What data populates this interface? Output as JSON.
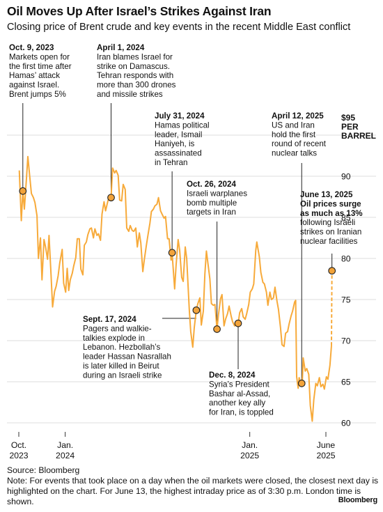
{
  "header": {
    "title": "Oil Moves Up After Israel’s Strikes Against Iran",
    "subtitle": "Closing price of Brent crude and key events in the recent Middle East conflict"
  },
  "footer": {
    "source": "Source: Bloomberg",
    "note": "Note: For events that took place on a day when the oil markets were closed, the closest next day is highlighted on the chart. For June 13, the highest intraday price as of 3:30 p.m. London time is shown.",
    "brand": "Bloomberg"
  },
  "colors": {
    "line": "#f7aa3a",
    "marker": "#f2a33a",
    "text": "#111111",
    "grid": "#dcdcdc"
  },
  "chart_data": {
    "type": "line",
    "title": "Oil Moves Up After Israel’s Strikes Against Iran",
    "subtitle": "Closing price of Brent crude and key events in the recent Middle East conflict",
    "y_unit_top": "$95",
    "y_unit_lines": [
      "PER",
      "BARREL"
    ],
    "ylim": [
      58,
      97
    ],
    "yticks": [
      60,
      65,
      70,
      75,
      80,
      85,
      90
    ],
    "xlim": [
      "2023-09-25",
      "2025-06-20"
    ],
    "xticks": [
      {
        "date": "2023-10-01",
        "lines": [
          "Oct.",
          "2023"
        ]
      },
      {
        "date": "2024-01-01",
        "lines": [
          "Jan.",
          "2024"
        ]
      },
      {
        "date": "2025-01-01",
        "lines": [
          "Jan.",
          "2025"
        ]
      },
      {
        "date": "2025-06-01",
        "lines": [
          "June",
          "2025"
        ]
      }
    ],
    "grid": true,
    "series": [
      {
        "points": [
          [
            "2023-10-02",
            90.7
          ],
          [
            "2023-10-06",
            84.6
          ],
          [
            "2023-10-09",
            88.2
          ],
          [
            "2023-10-12",
            86.0
          ],
          [
            "2023-10-16",
            89.6
          ],
          [
            "2023-10-19",
            92.4
          ],
          [
            "2023-10-23",
            89.8
          ],
          [
            "2023-10-26",
            87.9
          ],
          [
            "2023-10-30",
            87.4
          ],
          [
            "2023-11-02",
            86.8
          ],
          [
            "2023-11-06",
            85.2
          ],
          [
            "2023-11-09",
            80.0
          ],
          [
            "2023-11-13",
            82.5
          ],
          [
            "2023-11-16",
            77.4
          ],
          [
            "2023-11-20",
            82.3
          ],
          [
            "2023-11-23",
            81.4
          ],
          [
            "2023-11-27",
            79.9
          ],
          [
            "2023-11-30",
            82.8
          ],
          [
            "2023-12-04",
            78.0
          ],
          [
            "2023-12-07",
            74.1
          ],
          [
            "2023-12-11",
            76.0
          ],
          [
            "2023-12-14",
            76.6
          ],
          [
            "2023-12-18",
            77.9
          ],
          [
            "2023-12-21",
            79.4
          ],
          [
            "2023-12-26",
            81.1
          ],
          [
            "2023-12-29",
            77.0
          ],
          [
            "2024-01-02",
            75.9
          ],
          [
            "2024-01-05",
            78.8
          ],
          [
            "2024-01-08",
            76.1
          ],
          [
            "2024-01-11",
            77.4
          ],
          [
            "2024-01-15",
            78.2
          ],
          [
            "2024-01-18",
            79.1
          ],
          [
            "2024-01-22",
            80.1
          ],
          [
            "2024-01-25",
            82.4
          ],
          [
            "2024-01-29",
            82.4
          ],
          [
            "2024-02-01",
            78.7
          ],
          [
            "2024-02-05",
            78.0
          ],
          [
            "2024-02-08",
            81.6
          ],
          [
            "2024-02-12",
            82.0
          ],
          [
            "2024-02-15",
            82.9
          ],
          [
            "2024-02-19",
            83.6
          ],
          [
            "2024-02-22",
            83.7
          ],
          [
            "2024-02-26",
            82.5
          ],
          [
            "2024-02-29",
            83.6
          ],
          [
            "2024-03-04",
            82.8
          ],
          [
            "2024-03-07",
            83.0
          ],
          [
            "2024-03-11",
            82.2
          ],
          [
            "2024-03-14",
            85.4
          ],
          [
            "2024-03-18",
            86.9
          ],
          [
            "2024-03-21",
            85.8
          ],
          [
            "2024-03-25",
            86.8
          ],
          [
            "2024-03-28",
            87.5
          ],
          [
            "2024-04-01",
            87.4
          ],
          [
            "2024-04-04",
            91.0
          ],
          [
            "2024-04-08",
            90.4
          ],
          [
            "2024-04-11",
            90.7
          ],
          [
            "2024-04-15",
            90.1
          ],
          [
            "2024-04-18",
            87.1
          ],
          [
            "2024-04-22",
            87.0
          ],
          [
            "2024-04-25",
            89.0
          ],
          [
            "2024-04-29",
            88.4
          ],
          [
            "2024-05-02",
            83.7
          ],
          [
            "2024-05-06",
            83.3
          ],
          [
            "2024-05-09",
            84.0
          ],
          [
            "2024-05-13",
            83.4
          ],
          [
            "2024-05-16",
            83.3
          ],
          [
            "2024-05-20",
            83.7
          ],
          [
            "2024-05-23",
            81.4
          ],
          [
            "2024-05-27",
            83.1
          ],
          [
            "2024-05-30",
            81.9
          ],
          [
            "2024-06-03",
            78.4
          ],
          [
            "2024-06-06",
            79.9
          ],
          [
            "2024-06-10",
            81.6
          ],
          [
            "2024-06-13",
            82.8
          ],
          [
            "2024-06-17",
            84.3
          ],
          [
            "2024-06-20",
            85.7
          ],
          [
            "2024-06-24",
            86.0
          ],
          [
            "2024-06-27",
            86.4
          ],
          [
            "2024-07-01",
            86.6
          ],
          [
            "2024-07-04",
            87.4
          ],
          [
            "2024-07-08",
            85.8
          ],
          [
            "2024-07-11",
            85.4
          ],
          [
            "2024-07-15",
            84.9
          ],
          [
            "2024-07-18",
            85.1
          ],
          [
            "2024-07-22",
            82.4
          ],
          [
            "2024-07-25",
            82.4
          ],
          [
            "2024-07-29",
            79.8
          ],
          [
            "2024-07-31",
            80.7
          ],
          [
            "2024-08-05",
            76.3
          ],
          [
            "2024-08-08",
            79.2
          ],
          [
            "2024-08-12",
            82.3
          ],
          [
            "2024-08-15",
            81.0
          ],
          [
            "2024-08-19",
            77.7
          ],
          [
            "2024-08-22",
            77.2
          ],
          [
            "2024-08-26",
            81.4
          ],
          [
            "2024-08-29",
            80.0
          ],
          [
            "2024-09-03",
            73.8
          ],
          [
            "2024-09-06",
            71.1
          ],
          [
            "2024-09-10",
            69.2
          ],
          [
            "2024-09-13",
            71.6
          ],
          [
            "2024-09-17",
            73.7
          ],
          [
            "2024-09-20",
            74.5
          ],
          [
            "2024-09-24",
            75.2
          ],
          [
            "2024-09-27",
            71.9
          ],
          [
            "2024-10-01",
            73.6
          ],
          [
            "2024-10-04",
            78.1
          ],
          [
            "2024-10-07",
            80.9
          ],
          [
            "2024-10-10",
            79.4
          ],
          [
            "2024-10-14",
            77.5
          ],
          [
            "2024-10-17",
            74.5
          ],
          [
            "2024-10-21",
            74.3
          ],
          [
            "2024-10-24",
            74.4
          ],
          [
            "2024-10-28",
            71.4
          ],
          [
            "2024-10-31",
            73.2
          ],
          [
            "2024-11-04",
            75.1
          ],
          [
            "2024-11-07",
            75.6
          ],
          [
            "2024-11-11",
            71.8
          ],
          [
            "2024-11-14",
            72.6
          ],
          [
            "2024-11-18",
            73.3
          ],
          [
            "2024-11-21",
            74.2
          ],
          [
            "2024-11-25",
            73.0
          ],
          [
            "2024-11-28",
            72.3
          ],
          [
            "2024-12-02",
            71.8
          ],
          [
            "2024-12-05",
            72.1
          ],
          [
            "2024-12-09",
            72.1
          ],
          [
            "2024-12-12",
            73.4
          ],
          [
            "2024-12-16",
            73.9
          ],
          [
            "2024-12-19",
            72.9
          ],
          [
            "2024-12-23",
            72.6
          ],
          [
            "2024-12-26",
            73.3
          ],
          [
            "2024-12-30",
            74.4
          ],
          [
            "2025-01-02",
            75.9
          ],
          [
            "2025-01-06",
            76.3
          ],
          [
            "2025-01-09",
            76.9
          ],
          [
            "2025-01-13",
            81.0
          ],
          [
            "2025-01-15",
            82.0
          ],
          [
            "2025-01-20",
            80.2
          ],
          [
            "2025-01-23",
            78.3
          ],
          [
            "2025-01-27",
            77.1
          ],
          [
            "2025-01-30",
            76.9
          ],
          [
            "2025-02-03",
            75.9
          ],
          [
            "2025-02-06",
            74.3
          ],
          [
            "2025-02-10",
            75.9
          ],
          [
            "2025-02-13",
            75.0
          ],
          [
            "2025-02-17",
            75.2
          ],
          [
            "2025-02-20",
            76.5
          ],
          [
            "2025-02-24",
            74.8
          ],
          [
            "2025-02-27",
            73.8
          ],
          [
            "2025-03-03",
            71.6
          ],
          [
            "2025-03-06",
            69.5
          ],
          [
            "2025-03-10",
            69.3
          ],
          [
            "2025-03-13",
            70.9
          ],
          [
            "2025-03-17",
            71.1
          ],
          [
            "2025-03-20",
            72.0
          ],
          [
            "2025-03-24",
            73.0
          ],
          [
            "2025-03-27",
            73.6
          ],
          [
            "2025-03-31",
            74.7
          ],
          [
            "2025-04-02",
            74.9
          ],
          [
            "2025-04-04",
            65.6
          ],
          [
            "2025-04-07",
            64.2
          ],
          [
            "2025-04-09",
            65.5
          ],
          [
            "2025-04-12",
            64.8
          ],
          [
            "2025-04-15",
            64.7
          ],
          [
            "2025-04-17",
            67.9
          ],
          [
            "2025-04-21",
            66.3
          ],
          [
            "2025-04-24",
            66.6
          ],
          [
            "2025-04-28",
            65.9
          ],
          [
            "2025-05-01",
            62.1
          ],
          [
            "2025-05-05",
            60.2
          ],
          [
            "2025-05-08",
            62.8
          ],
          [
            "2025-05-12",
            64.8
          ],
          [
            "2025-05-15",
            64.5
          ],
          [
            "2025-05-19",
            65.5
          ],
          [
            "2025-05-22",
            64.4
          ],
          [
            "2025-05-26",
            64.7
          ],
          [
            "2025-05-29",
            64.1
          ],
          [
            "2025-06-02",
            65.6
          ],
          [
            "2025-06-05",
            65.3
          ],
          [
            "2025-06-09",
            67.0
          ],
          [
            "2025-06-12",
            69.4
          ]
        ]
      }
    ],
    "dashed_segment": [
      [
        "2025-06-12",
        69.4
      ],
      [
        "2025-06-13",
        78.5
      ]
    ],
    "events": [
      {
        "date": "Oct. 9, 2023",
        "when": "2023-10-09",
        "value": 88.2,
        "lines": [
          "Markets open for",
          "the first time after",
          "Hamas’ attack",
          "against Israel.",
          "Brent jumps 5%"
        ]
      },
      {
        "date": "April 1, 2024",
        "when": "2024-04-01",
        "value": 87.4,
        "lines": [
          "Iran blames Israel for",
          "strike on Damascus.",
          "Tehran responds with",
          "more than 300 drones",
          "and missile strikes"
        ]
      },
      {
        "date": "July 31, 2024",
        "when": "2024-07-31",
        "value": 80.7,
        "lines": [
          "Hamas political",
          "leader, Ismail",
          "Haniyeh, is",
          "assassinated",
          "in Tehran"
        ]
      },
      {
        "date": "Sept. 17, 2024",
        "when": "2024-09-17",
        "value": 73.7,
        "lines": [
          "Pagers and walkie-",
          "talkies explode in",
          "Lebanon. Hezbollah’s",
          "leader Hassan Nasrallah",
          "is later killed in Beirut",
          "during an Israeli strike"
        ]
      },
      {
        "date": "Oct. 26, 2024",
        "when": "2024-10-28",
        "value": 71.4,
        "lines": [
          "Israeli warplanes",
          "bomb multiple",
          "targets in Iran"
        ]
      },
      {
        "date": "Dec. 8, 2024",
        "when": "2024-12-09",
        "value": 72.1,
        "lines": [
          "Syria’s President",
          "Bashar al-Assad,",
          "another key ally",
          "for Iran, is toppled"
        ]
      },
      {
        "date": "April 12, 2025",
        "when": "2025-04-14",
        "value": 64.8,
        "lines": [
          "US and Iran",
          "hold the first",
          "round of recent",
          "nuclear talks"
        ]
      },
      {
        "date": "June 13, 2025",
        "when": "2025-06-13",
        "value": 78.5,
        "bold_lines": [
          "Oil prices surge",
          "as much as 13%"
        ],
        "lines": [
          "following Israeli",
          "strikes on Iranian",
          "nuclear facilities"
        ]
      }
    ]
  }
}
